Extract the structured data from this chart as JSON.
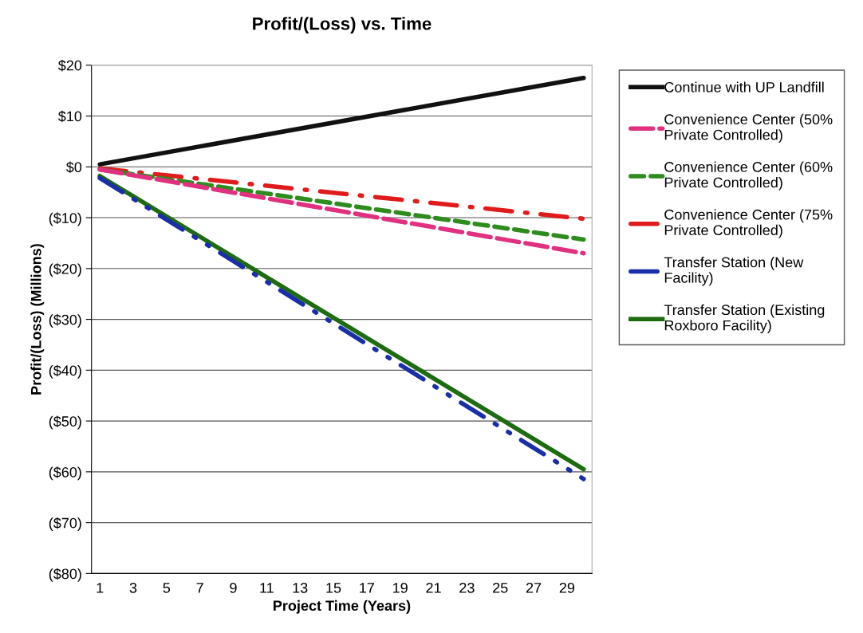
{
  "chart_data": {
    "type": "line",
    "title": "Profit/(Loss) vs. Time",
    "xlabel": "Project Time (Years)",
    "ylabel": "Profit/(Loss) (Millions)",
    "xlim": [
      0.5,
      30.5
    ],
    "xticks": [
      1,
      3,
      5,
      7,
      9,
      11,
      13,
      15,
      17,
      19,
      21,
      23,
      25,
      27,
      29
    ],
    "ylim": [
      -80,
      20
    ],
    "yticks": [
      {
        "value": 20,
        "label": "$20"
      },
      {
        "value": 10,
        "label": "$10"
      },
      {
        "value": 0,
        "label": "$0"
      },
      {
        "value": -10,
        "label": "($10)"
      },
      {
        "value": -20,
        "label": "($20)"
      },
      {
        "value": -30,
        "label": "($30)"
      },
      {
        "value": -40,
        "label": "($40)"
      },
      {
        "value": -50,
        "label": "($50)"
      },
      {
        "value": -60,
        "label": "($60)"
      },
      {
        "value": -70,
        "label": "($70)"
      },
      {
        "value": -80,
        "label": "($80)"
      }
    ],
    "grid": "y",
    "legend": "right",
    "marker": "none",
    "x": [
      1,
      30
    ],
    "series": [
      {
        "name": "Continue with UP Landfill",
        "color": "#111111",
        "line_style": "solid",
        "values": [
          0.5,
          17.5
        ]
      },
      {
        "name": "Convenience Center (50% Private Controlled)",
        "color": "#e0307f",
        "line_style": "dashed",
        "values": [
          -0.5,
          -17.0
        ]
      },
      {
        "name": "Convenience Center (60% Private Controlled)",
        "color": "#2e8b1e",
        "line_style": "dashed",
        "values": [
          -0.5,
          -14.3
        ]
      },
      {
        "name": "Convenience Center (75% Private Controlled)",
        "color": "#e01b1b",
        "line_style": "dashed",
        "values": [
          -0.3,
          -10.2
        ]
      },
      {
        "name": "Transfer Station (New Facility)",
        "color": "#1a2ea8",
        "line_style": "dashed",
        "values": [
          -2.2,
          -61.4
        ]
      },
      {
        "name": "Transfer Station (Existing Roxboro Facility)",
        "color": "#1e6b12",
        "line_style": "solid",
        "values": [
          -1.8,
          -59.5
        ]
      }
    ]
  }
}
